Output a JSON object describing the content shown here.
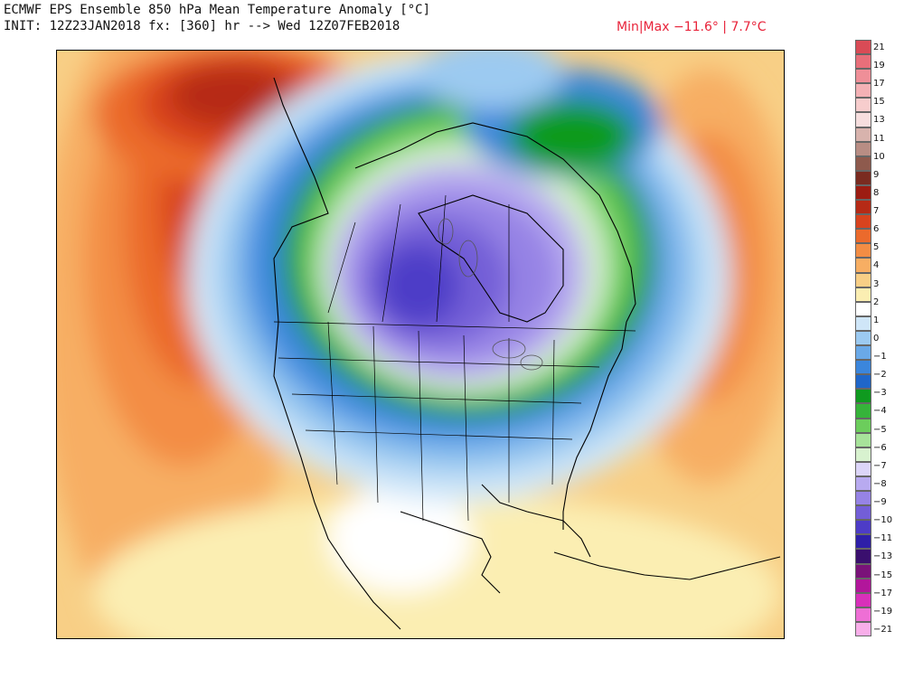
{
  "header": {
    "line1": "ECMWF EPS Ensemble 850 hPa Mean Temperature Anomaly [°C]",
    "line2": "INIT: 12Z23JAN2018 fx: [360] hr --> Wed 12Z07FEB2018",
    "minmax": "Min|Max −11.6° | 7.7°C"
  },
  "colorbar": {
    "ticks": [
      "21",
      "19",
      "17",
      "15",
      "13",
      "11",
      "10",
      "9",
      "8",
      "7",
      "6",
      "5",
      "4",
      "3",
      "2",
      "1",
      "0",
      "−1",
      "−2",
      "−3",
      "−4",
      "−5",
      "−6",
      "−7",
      "−8",
      "−9",
      "−10",
      "−11",
      "−13",
      "−15",
      "−17",
      "−19",
      "−21"
    ],
    "colors": [
      "#d94b56",
      "#e86f7a",
      "#ef8f98",
      "#f4b1b5",
      "#f7cdcd",
      "#f6dede",
      "#d8b3ad",
      "#b88d84",
      "#8e5a4d",
      "#7a2b20",
      "#9c1c12",
      "#b62a16",
      "#d8431e",
      "#eb6a2c",
      "#f38d44",
      "#f7ae63",
      "#f8cf86",
      "#fbeeb2",
      "#ffffff",
      "#cfe6f8",
      "#9ccaf1",
      "#6aa9e8",
      "#3b86dc",
      "#1f66c9",
      "#0f9a1f",
      "#36b33a",
      "#6ccd5c",
      "#a7e39a",
      "#d8f2cf",
      "#dcd5f8",
      "#b8aaf0",
      "#9683e5",
      "#735ed7",
      "#4d3cc7",
      "#2e1fa8",
      "#3a0f6e",
      "#7a1279",
      "#b2169b",
      "#d830ba",
      "#ee6fd5",
      "#f8aee9"
    ]
  }
}
